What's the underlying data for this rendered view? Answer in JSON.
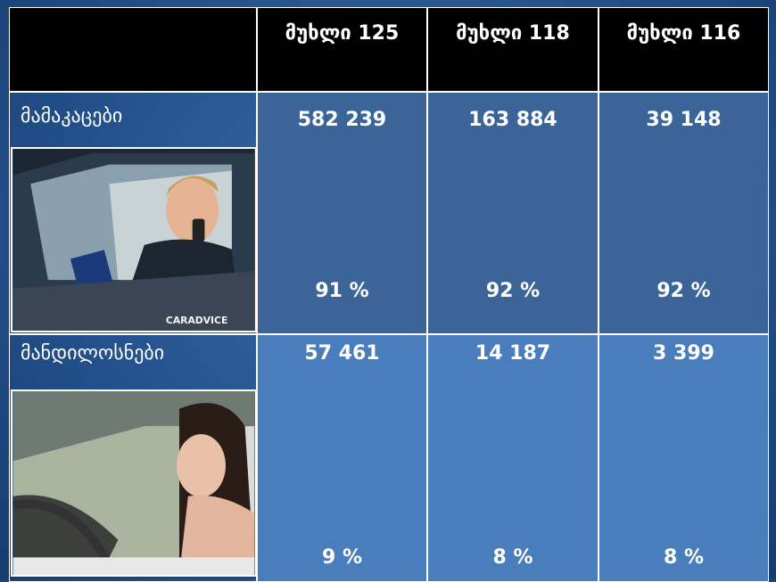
{
  "table": {
    "header": [
      "მუხლი 125",
      "მუხლი 118",
      "მუხლი 116"
    ],
    "rows": [
      {
        "label": "მამაკაცები",
        "counts": [
          "582 239",
          "163 884",
          "39 148"
        ],
        "percents": [
          "91 %",
          "92 %",
          "92 %"
        ],
        "photo_caption": "CARADVICE"
      },
      {
        "label": "მანდილოსნები",
        "counts": [
          "57 461",
          "14 187",
          "3 399"
        ],
        "percents": [
          "9 %",
          "8 %",
          "8 %"
        ]
      }
    ]
  }
}
